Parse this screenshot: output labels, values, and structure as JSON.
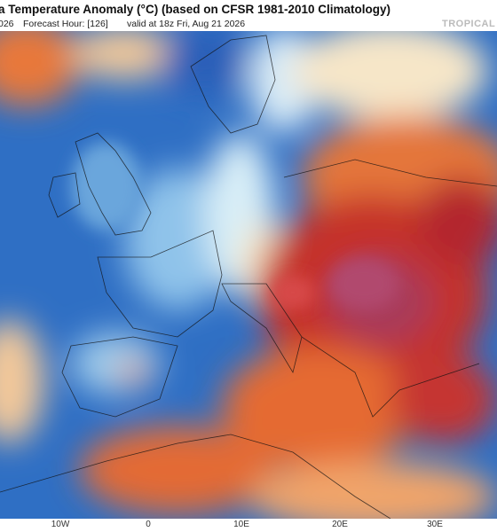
{
  "header": {
    "title": "a Temperature Anomaly (°C) (based on CFSR 1981-2010 Climatology)",
    "run": "026",
    "forecast_hour": "Forecast Hour: [126]",
    "valid": "valid at 18z Fri, Aug 21 2026",
    "brand": "TROPICAL"
  },
  "map": {
    "longitude_labels": [
      "10W",
      "0",
      "10E",
      "20E",
      "30E"
    ]
  }
}
